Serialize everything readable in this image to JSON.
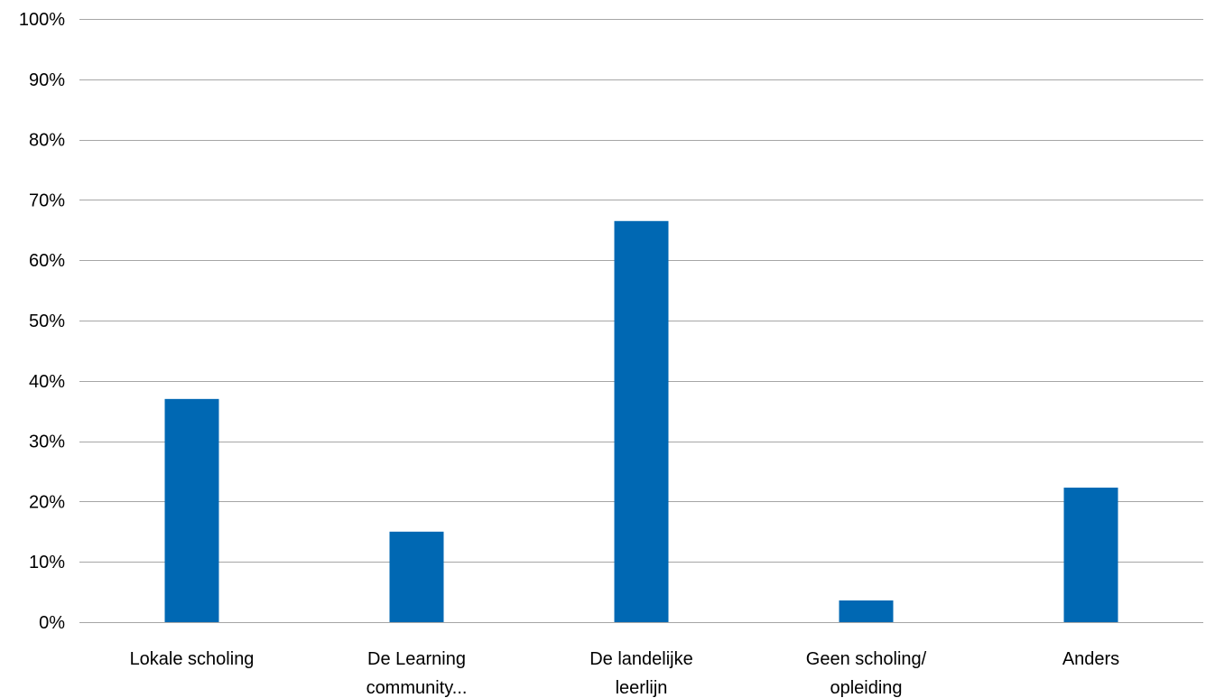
{
  "chart_data": {
    "type": "bar",
    "title": "",
    "xlabel": "",
    "ylabel": "",
    "categories": [
      [
        "Lokale scholing"
      ],
      [
        "De Learning",
        "community..."
      ],
      [
        "De landelijke",
        "leerlijn"
      ],
      [
        "Geen scholing/",
        "opleiding"
      ],
      [
        "Anders"
      ]
    ],
    "values": [
      37,
      15,
      66.5,
      3.6,
      22.3
    ],
    "ylim": [
      0,
      100
    ],
    "yticks": [
      0,
      10,
      20,
      30,
      40,
      50,
      60,
      70,
      80,
      90,
      100
    ],
    "ytick_labels": [
      "0%",
      "10%",
      "20%",
      "30%",
      "40%",
      "50%",
      "60%",
      "70%",
      "80%",
      "90%",
      "100%"
    ],
    "grid": true,
    "legend": "none",
    "colors": {
      "bar": "#0068b3",
      "grid": "#a6a6a6",
      "text": "#000000"
    }
  }
}
